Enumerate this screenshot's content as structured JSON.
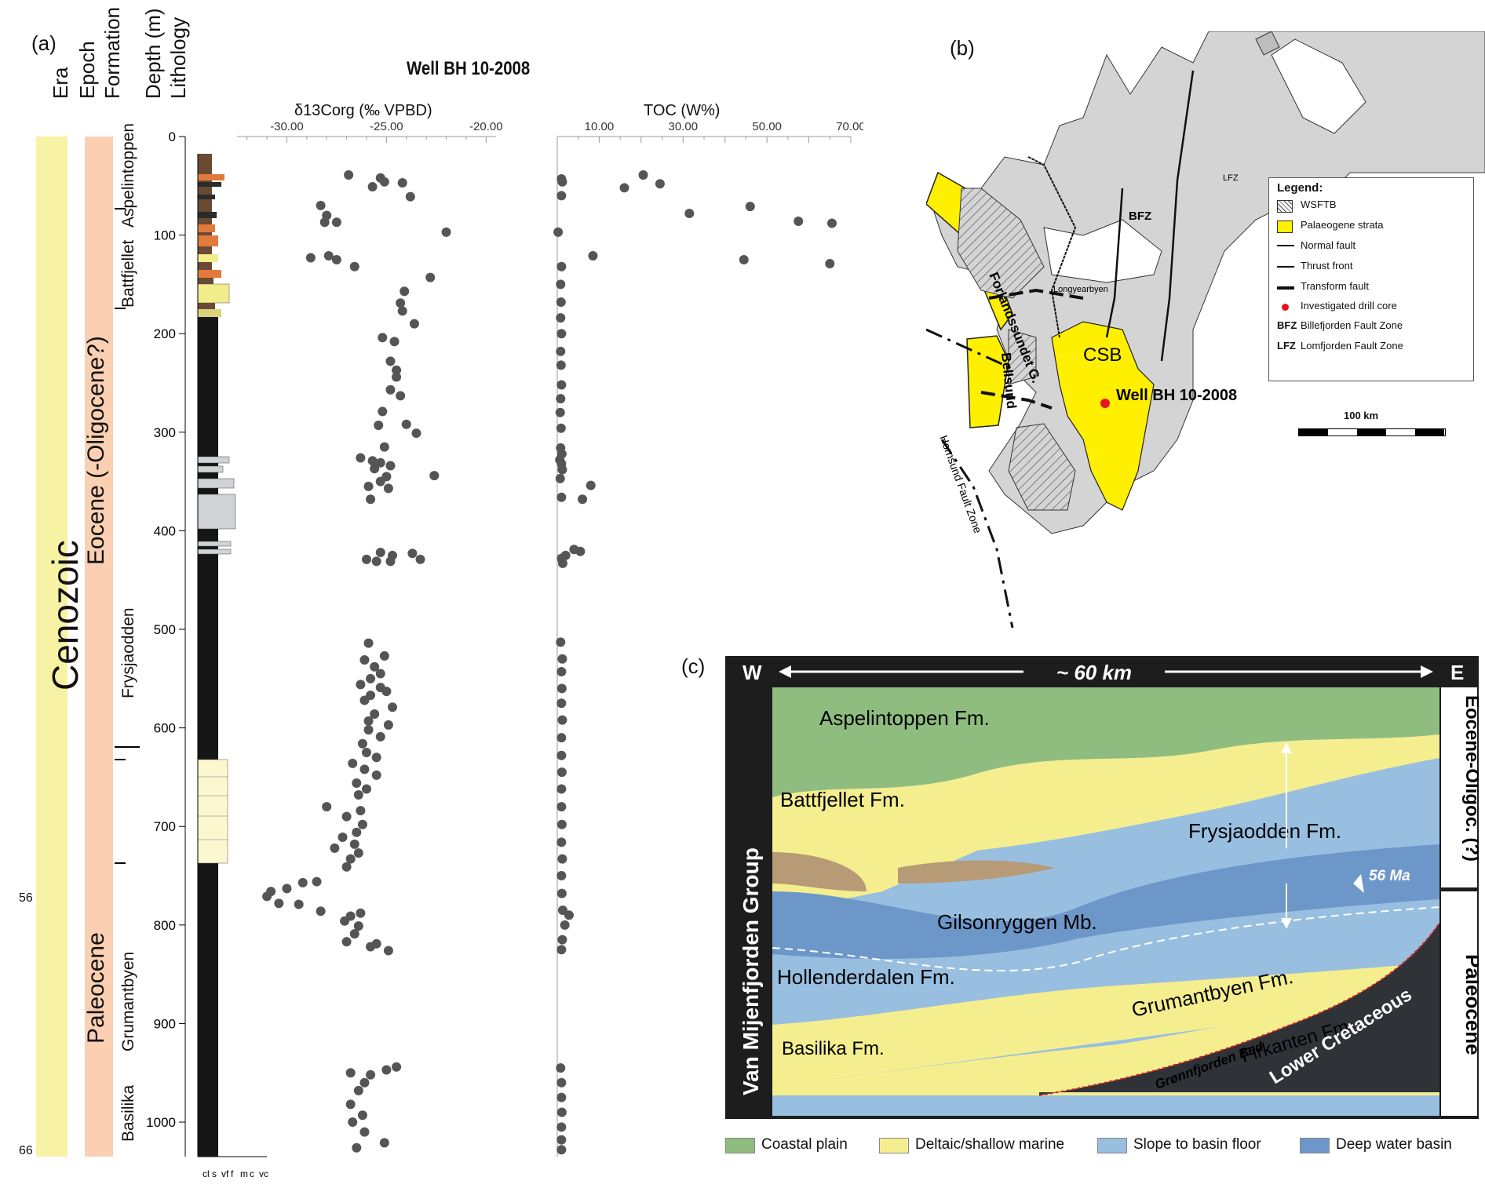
{
  "panels": {
    "a": "(a)",
    "b": "(b)",
    "c": "(c)"
  },
  "panel_a": {
    "headers": {
      "era": "Era",
      "epoch": "Epoch",
      "formation": "Formation",
      "depth": "Depth (m)",
      "lithology": "Lithology"
    },
    "era_label": "Cenozoic",
    "epochs": {
      "upper": "Eocene (-Oligocene?)",
      "lower": "Paleocene"
    },
    "formations": [
      "Aspelintoppen",
      "Battfjellet",
      "Frysjaodden",
      "Grumantbyen",
      "Basilika"
    ],
    "age_labels": [
      "56",
      "66"
    ],
    "depth_ticks": [
      "0",
      "100",
      "200",
      "300",
      "400",
      "500",
      "600",
      "700",
      "800",
      "900",
      "1000"
    ],
    "grain_size_labels": [
      "cl",
      "s",
      "vf",
      "f",
      "m",
      "c",
      "vc"
    ],
    "well_title": "Well BH 10-2008",
    "colors": {
      "era": "#f7f2a4",
      "epoch": "#fbcfb2",
      "points": "#555555"
    }
  },
  "chart_data": [
    {
      "type": "scatter",
      "title": "",
      "xlabel": "δ13Corg (‰ VPBD)",
      "ylabel": "Depth (m)",
      "x_ticks": [
        "-30.00",
        "-25.00",
        "-20.00"
      ],
      "x_tick_values": [
        -30,
        -25,
        -20
      ],
      "xlim": [
        -32.5,
        -19.5
      ],
      "ylim": [
        1035,
        0
      ],
      "points": [
        [
          -26.9,
          39
        ],
        [
          -25.3,
          42
        ],
        [
          -25.1,
          46
        ],
        [
          -25.7,
          51
        ],
        [
          -24.2,
          47
        ],
        [
          -23.8,
          61
        ],
        [
          -28.3,
          70
        ],
        [
          -28.0,
          80
        ],
        [
          -28.1,
          87
        ],
        [
          -27.5,
          87
        ],
        [
          -22.0,
          97
        ],
        [
          -28.8,
          123
        ],
        [
          -27.9,
          121
        ],
        [
          -27.5,
          125
        ],
        [
          -26.6,
          132
        ],
        [
          -22.8,
          143
        ],
        [
          -24.1,
          157
        ],
        [
          -24.3,
          169
        ],
        [
          -24.2,
          177
        ],
        [
          -23.6,
          190
        ],
        [
          -25.2,
          204
        ],
        [
          -24.6,
          208
        ],
        [
          -24.8,
          228
        ],
        [
          -24.5,
          237
        ],
        [
          -24.5,
          244
        ],
        [
          -24.8,
          257
        ],
        [
          -24.3,
          263
        ],
        [
          -25.2,
          279
        ],
        [
          -25.4,
          293
        ],
        [
          -24.0,
          292
        ],
        [
          -23.5,
          301
        ],
        [
          -25.1,
          315
        ],
        [
          -26.3,
          326
        ],
        [
          -25.7,
          329
        ],
        [
          -25.3,
          331
        ],
        [
          -24.8,
          334
        ],
        [
          -25.6,
          337
        ],
        [
          -25.0,
          345
        ],
        [
          -25.9,
          355
        ],
        [
          -25.3,
          350
        ],
        [
          -24.9,
          357
        ],
        [
          -22.6,
          344
        ],
        [
          -25.8,
          368
        ],
        [
          -25.3,
          422
        ],
        [
          -26.0,
          429
        ],
        [
          -25.5,
          431
        ],
        [
          -24.7,
          425
        ],
        [
          -24.8,
          431
        ],
        [
          -23.7,
          423
        ],
        [
          -23.3,
          429
        ],
        [
          -25.9,
          514
        ],
        [
          -25.1,
          527
        ],
        [
          -26.1,
          531
        ],
        [
          -25.6,
          538
        ],
        [
          -25.3,
          545
        ],
        [
          -25.8,
          550
        ],
        [
          -26.3,
          556
        ],
        [
          -25.3,
          559
        ],
        [
          -25.0,
          563
        ],
        [
          -25.8,
          567
        ],
        [
          -26.1,
          572
        ],
        [
          -24.7,
          579
        ],
        [
          -25.6,
          586
        ],
        [
          -25.9,
          593
        ],
        [
          -24.9,
          597
        ],
        [
          -25.9,
          602
        ],
        [
          -25.3,
          609
        ],
        [
          -26.2,
          616
        ],
        [
          -26.0,
          625
        ],
        [
          -25.5,
          630
        ],
        [
          -26.7,
          636
        ],
        [
          -26.1,
          642
        ],
        [
          -25.5,
          648
        ],
        [
          -26.5,
          656
        ],
        [
          -26.0,
          662
        ],
        [
          -26.4,
          668
        ],
        [
          -28.0,
          680
        ],
        [
          -26.3,
          684
        ],
        [
          -27.0,
          690
        ],
        [
          -26.2,
          698
        ],
        [
          -26.5,
          706
        ],
        [
          -27.2,
          711
        ],
        [
          -26.6,
          718
        ],
        [
          -27.6,
          722
        ],
        [
          -26.4,
          727
        ],
        [
          -26.8,
          733
        ],
        [
          -27.0,
          741
        ],
        [
          -28.5,
          756
        ],
        [
          -29.2,
          757
        ],
        [
          -30.0,
          763
        ],
        [
          -30.8,
          766
        ],
        [
          -31.0,
          771
        ],
        [
          -30.4,
          778
        ],
        [
          -29.4,
          779
        ],
        [
          -28.3,
          786
        ],
        [
          -26.3,
          788
        ],
        [
          -26.8,
          791
        ],
        [
          -27.1,
          796
        ],
        [
          -26.4,
          801
        ],
        [
          -26.6,
          809
        ],
        [
          -27.0,
          817
        ],
        [
          -25.8,
          822
        ],
        [
          -24.9,
          826
        ],
        [
          -25.5,
          819
        ],
        [
          -24.5,
          944
        ],
        [
          -25.0,
          947
        ],
        [
          -25.8,
          952
        ],
        [
          -26.8,
          950
        ],
        [
          -26.1,
          960
        ],
        [
          -26.4,
          968
        ],
        [
          -26.8,
          982
        ],
        [
          -26.2,
          993
        ],
        [
          -26.7,
          1000
        ],
        [
          -26.1,
          1010
        ],
        [
          -25.1,
          1021
        ],
        [
          -26.5,
          1026
        ]
      ]
    },
    {
      "type": "scatter",
      "title": "",
      "xlabel": "TOC (W%)",
      "ylabel": "Depth (m)",
      "x_ticks": [
        "10.00",
        "30.00",
        "50.00",
        "70.00"
      ],
      "x_tick_values": [
        10,
        30,
        50,
        70
      ],
      "xlim": [
        0,
        70
      ],
      "ylim": [
        1035,
        0
      ],
      "points": [
        [
          1.0,
          43
        ],
        [
          1.2,
          46
        ],
        [
          1.0,
          60
        ],
        [
          16.0,
          52
        ],
        [
          20.5,
          39
        ],
        [
          24.5,
          48
        ],
        [
          31.5,
          78
        ],
        [
          46.0,
          71
        ],
        [
          57.5,
          86
        ],
        [
          65.5,
          88
        ],
        [
          0.2,
          97
        ],
        [
          8.5,
          121
        ],
        [
          44.5,
          125
        ],
        [
          65.0,
          129
        ],
        [
          1.0,
          132
        ],
        [
          0.8,
          150
        ],
        [
          0.9,
          168
        ],
        [
          0.8,
          184
        ],
        [
          1.0,
          200
        ],
        [
          0.8,
          218
        ],
        [
          0.9,
          232
        ],
        [
          1.0,
          252
        ],
        [
          0.8,
          266
        ],
        [
          0.7,
          280
        ],
        [
          0.9,
          296
        ],
        [
          0.8,
          316
        ],
        [
          1.1,
          322
        ],
        [
          0.6,
          328
        ],
        [
          1.0,
          332
        ],
        [
          1.2,
          338
        ],
        [
          0.7,
          347
        ],
        [
          8.0,
          354
        ],
        [
          1.0,
          366
        ],
        [
          6.0,
          368
        ],
        [
          4.0,
          419
        ],
        [
          5.5,
          421
        ],
        [
          2.0,
          425
        ],
        [
          1.0,
          428
        ],
        [
          1.3,
          433
        ],
        [
          0.8,
          513
        ],
        [
          1.2,
          530
        ],
        [
          1.0,
          543
        ],
        [
          1.1,
          560
        ],
        [
          1.0,
          575
        ],
        [
          1.2,
          592
        ],
        [
          1.0,
          610
        ],
        [
          1.0,
          628
        ],
        [
          1.1,
          645
        ],
        [
          1.0,
          662
        ],
        [
          1.0,
          680
        ],
        [
          1.1,
          698
        ],
        [
          1.0,
          716
        ],
        [
          1.2,
          733
        ],
        [
          1.0,
          750
        ],
        [
          1.1,
          768
        ],
        [
          1.3,
          785
        ],
        [
          2.8,
          790
        ],
        [
          1.8,
          800
        ],
        [
          1.2,
          815
        ],
        [
          1.0,
          825
        ],
        [
          0.8,
          945
        ],
        [
          1.0,
          960
        ],
        [
          1.0,
          975
        ],
        [
          1.1,
          990
        ],
        [
          1.0,
          1005
        ],
        [
          1.0,
          1018
        ],
        [
          1.0,
          1028
        ]
      ]
    }
  ],
  "panel_b": {
    "legend_title": "Legend:",
    "legend_items": [
      "WSFTB",
      "Palaeogene strata",
      "Normal fault",
      "Thrust front",
      "Transform fault",
      "Investigated drill core",
      "Billefjorden Fault Zone",
      "Lomfjorden Fault Zone"
    ],
    "legend_abbrevs": [
      "BFZ",
      "LFZ"
    ],
    "scale_label": "100 km",
    "labels": {
      "lfz": "LFZ",
      "bfz": "BFZ",
      "csb": "CSB",
      "well": "Well BH 10-2008",
      "forland": "Forlandssundet G.",
      "bellsund": "Bellsund",
      "longyearbyen": "Longyearbyen",
      "hornsund": "Hornsund Fault Zone"
    },
    "colors": {
      "land": "#d4d4d4",
      "palaeogene": "#ffef00",
      "drill": "#e8141b"
    }
  },
  "panel_c": {
    "west": "W",
    "east": "E",
    "distance": "~ 60 km",
    "group": "Van Mijenfjorden Group",
    "epoch_upper": "Eocene-Oligoc. (?)",
    "epoch_lower": "Paleocene",
    "age_marker": "56 Ma",
    "units": [
      "Aspelintoppen Fm.",
      "Battfjellet Fm.",
      "Frysjaodden Fm.",
      "Gilsonryggen Mb.",
      "Hollenderdalen Fm.",
      "Grumantbyen Fm.",
      "Firkanten Fm.",
      "Basilika Fm.",
      "Grønnfjorden Bed",
      "Lower Cretaceous"
    ],
    "legend": [
      "Coastal plain",
      "Deltaic/shallow marine",
      "Slope to basin floor",
      "Deep water basin"
    ],
    "colors": {
      "coastal": "#8fbd7f",
      "deltaic": "#f5ee8f",
      "slope": "#99bfe0",
      "deep": "#6e97c9",
      "cretaceous": "#2f3237",
      "frame": "#1d1d1d"
    }
  }
}
